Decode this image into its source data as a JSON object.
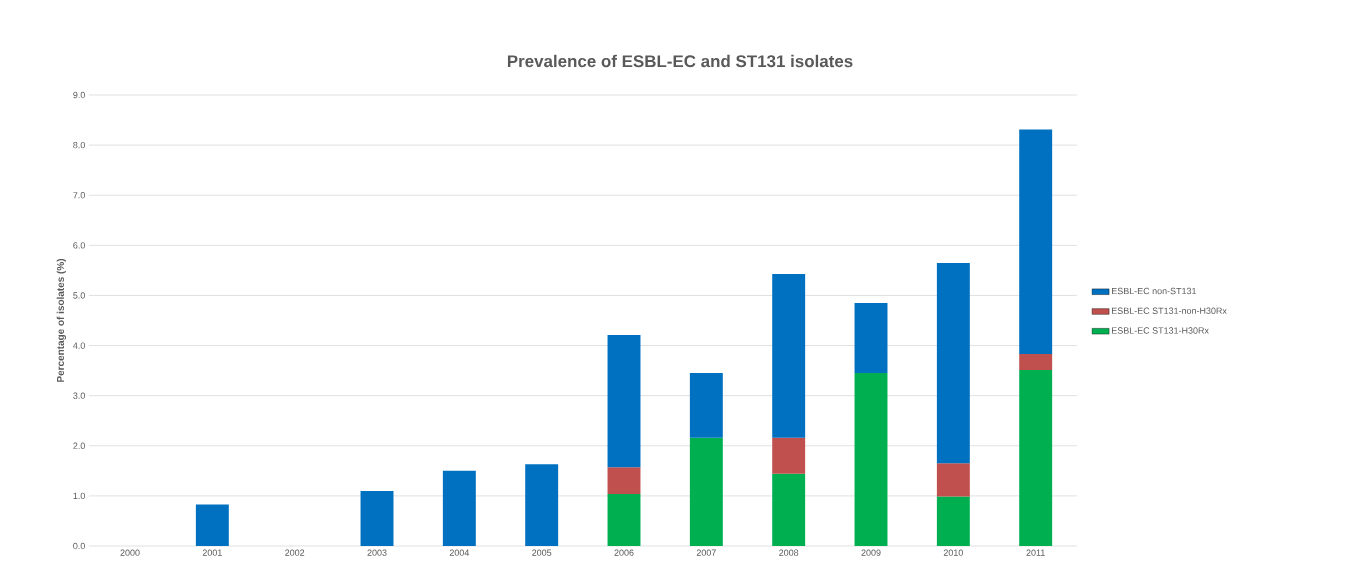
{
  "chart_data": {
    "type": "bar",
    "title": "Prevalence of ESBL-EC and ST131 isolates",
    "ylabel": "Percentage of isolates (%)",
    "categories": [
      "2000",
      "2001",
      "2002",
      "2003",
      "2004",
      "2005",
      "2006",
      "2007",
      "2008",
      "2009",
      "2010",
      "2011"
    ],
    "stacked": true,
    "series": [
      {
        "name": "ESBL-EC ST131-H30Rx",
        "color": "#00b050",
        "values": [
          null,
          null,
          null,
          null,
          null,
          null,
          1.04,
          2.16,
          1.44,
          3.45,
          0.99,
          3.51
        ]
      },
      {
        "name": "ESBL-EC ST131-non-H30Rx",
        "color": "#c0504d",
        "values": [
          null,
          null,
          null,
          null,
          null,
          null,
          0.53,
          null,
          0.72,
          null,
          0.66,
          0.32
        ]
      },
      {
        "name": "ESBL-EC non-ST131",
        "color": "#0070c0",
        "values": [
          null,
          0.83,
          null,
          1.1,
          1.5,
          1.63,
          2.64,
          1.29,
          3.27,
          1.4,
          4.0,
          4.48
        ]
      }
    ],
    "ylim": [
      0,
      9
    ],
    "yticks": [
      {
        "value": 0,
        "label": "0.0"
      },
      {
        "value": 1,
        "label": "1.0"
      },
      {
        "value": 2,
        "label": "2.0"
      },
      {
        "value": 3,
        "label": "3.0"
      },
      {
        "value": 4,
        "label": "4.0"
      },
      {
        "value": 5,
        "label": "5.0"
      },
      {
        "value": 6,
        "label": "6.0"
      },
      {
        "value": 7,
        "label": "7.0"
      },
      {
        "value": 8,
        "label": "8.0"
      },
      {
        "value": 9,
        "label": "9.0"
      }
    ],
    "grid": "y",
    "legend": "right"
  }
}
